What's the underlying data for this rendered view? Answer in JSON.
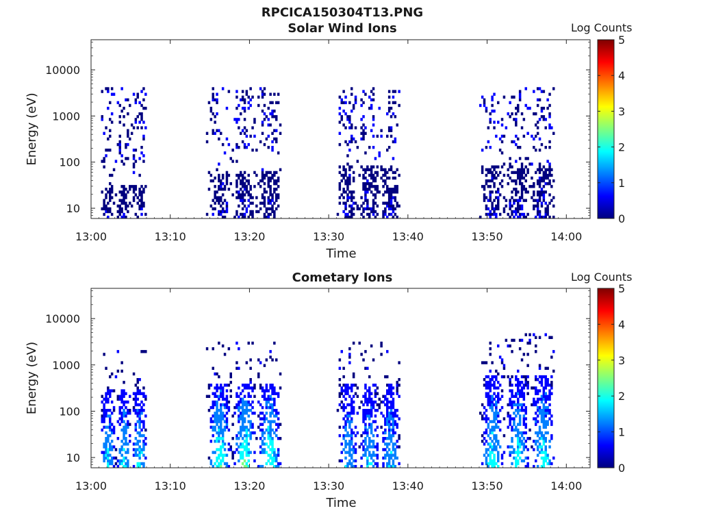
{
  "figure": {
    "title": "RPCICA150304T13.PNG"
  },
  "colors": {
    "axis": "#222222",
    "colormap": [
      "#00007f",
      "#0000ff",
      "#007fff",
      "#00ffff",
      "#7fff7f",
      "#ffff00",
      "#ff7f00",
      "#ff0000",
      "#7f0000"
    ]
  },
  "chart_data": [
    {
      "type": "heatmap",
      "title": "Solar Wind Ions",
      "xlabel": "Time",
      "ylabel": "Energy (eV)",
      "x_ticks": [
        "13:00",
        "13:10",
        "13:20",
        "13:30",
        "13:40",
        "13:50",
        "14:00"
      ],
      "x_range_minutes": [
        0,
        63
      ],
      "y_ticks": [
        "10",
        "100",
        "1000",
        "10000"
      ],
      "y_range_eV": [
        6,
        45000
      ],
      "y_scale": "log",
      "colorbar": {
        "label": "Log Counts",
        "ticks": [
          "0",
          "1",
          "2",
          "3",
          "4",
          "5"
        ],
        "range": [
          0,
          5
        ]
      },
      "bursts": [
        {
          "t_start": 1,
          "t_end": 7,
          "low_energy_max": 30,
          "high_energy_range": [
            100,
            4000
          ],
          "peak_log_counts": 0.3
        },
        {
          "t_start": 14.5,
          "t_end": 24,
          "low_energy_max": 60,
          "high_energy_range": [
            200,
            4000
          ],
          "peak_log_counts": 0.3
        },
        {
          "t_start": 31,
          "t_end": 39,
          "low_energy_max": 80,
          "high_energy_range": [
            300,
            4000
          ],
          "peak_log_counts": 0.3
        },
        {
          "t_start": 49,
          "t_end": 58.5,
          "low_energy_max": 90,
          "high_energy_range": [
            200,
            4000
          ],
          "peak_log_counts": 0.3
        }
      ]
    },
    {
      "type": "heatmap",
      "title": "Cometary Ions",
      "xlabel": "Time",
      "ylabel": "Energy (eV)",
      "x_ticks": [
        "13:00",
        "13:10",
        "13:20",
        "13:30",
        "13:40",
        "13:50",
        "14:00"
      ],
      "x_range_minutes": [
        0,
        63
      ],
      "y_ticks": [
        "10",
        "100",
        "1000",
        "10000"
      ],
      "y_range_eV": [
        6,
        45000
      ],
      "y_scale": "log",
      "colorbar": {
        "label": "Log Counts",
        "ticks": [
          "0",
          "1",
          "2",
          "3",
          "4",
          "5"
        ],
        "range": [
          0,
          5
        ]
      },
      "bursts": [
        {
          "t_start": 1,
          "t_end": 7,
          "low_energy_max": 300,
          "peak_log_counts": 1.8
        },
        {
          "t_start": 14.5,
          "t_end": 24,
          "low_energy_max": 400,
          "peak_log_counts": 2.2
        },
        {
          "t_start": 31,
          "t_end": 39,
          "low_energy_max": 400,
          "peak_log_counts": 1.6
        },
        {
          "t_start": 49,
          "t_end": 58.5,
          "low_energy_max": 600,
          "peak_log_counts": 1.9
        }
      ]
    }
  ]
}
